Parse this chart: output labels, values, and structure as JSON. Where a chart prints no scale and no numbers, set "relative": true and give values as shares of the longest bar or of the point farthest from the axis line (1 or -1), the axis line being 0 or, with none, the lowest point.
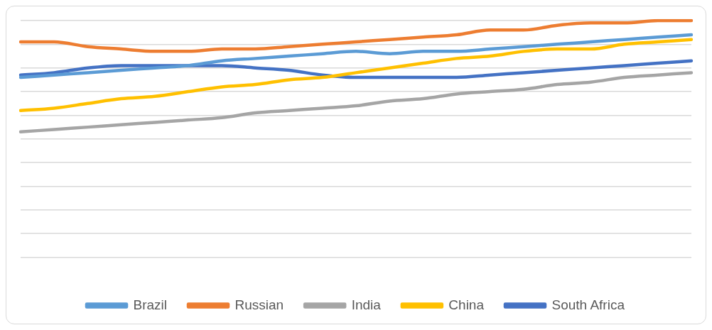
{
  "chart_data": {
    "type": "line",
    "relative": true,
    "grid": "y",
    "legend": "bottom",
    "marker": "none",
    "categories": [
      null,
      null,
      null,
      null,
      null,
      null,
      null,
      null,
      null,
      null,
      null,
      null,
      null,
      null,
      null,
      null,
      null,
      null,
      null,
      null,
      null
    ],
    "series": [
      {
        "name": "Brazil",
        "color": "#5b9bd5",
        "values": [
          0.76,
          0.77,
          0.78,
          0.79,
          0.8,
          0.81,
          0.83,
          0.84,
          0.85,
          0.86,
          0.87,
          0.86,
          0.87,
          0.87,
          0.88,
          0.89,
          0.9,
          0.91,
          0.92,
          0.93,
          0.94
        ]
      },
      {
        "name": "Russian",
        "color": "#ed7d31",
        "values": [
          0.91,
          0.91,
          0.89,
          0.88,
          0.87,
          0.87,
          0.88,
          0.88,
          0.89,
          0.9,
          0.91,
          0.92,
          0.93,
          0.94,
          0.96,
          0.96,
          0.98,
          0.99,
          0.99,
          1,
          1
        ]
      },
      {
        "name": "India",
        "color": "#a5a5a5",
        "values": [
          0.53,
          0.54,
          0.55,
          0.56,
          0.57,
          0.58,
          0.59,
          0.61,
          0.62,
          0.63,
          0.64,
          0.66,
          0.67,
          0.69,
          0.7,
          0.71,
          0.73,
          0.74,
          0.76,
          0.77,
          0.78
        ]
      },
      {
        "name": "China",
        "color": "#ffc000",
        "values": [
          0.62,
          0.63,
          0.65,
          0.67,
          0.68,
          0.7,
          0.72,
          0.73,
          0.75,
          0.76,
          0.78,
          0.8,
          0.82,
          0.84,
          0.85,
          0.87,
          0.88,
          0.88,
          0.9,
          0.91,
          0.92
        ]
      },
      {
        "name": "South Africa",
        "color": "#4472c4",
        "values": [
          0.77,
          0.78,
          0.8,
          0.81,
          0.81,
          0.81,
          0.81,
          0.8,
          0.79,
          0.77,
          0.76,
          0.76,
          0.76,
          0.76,
          0.77,
          0.78,
          0.79,
          0.8,
          0.81,
          0.82,
          0.83
        ]
      }
    ]
  }
}
